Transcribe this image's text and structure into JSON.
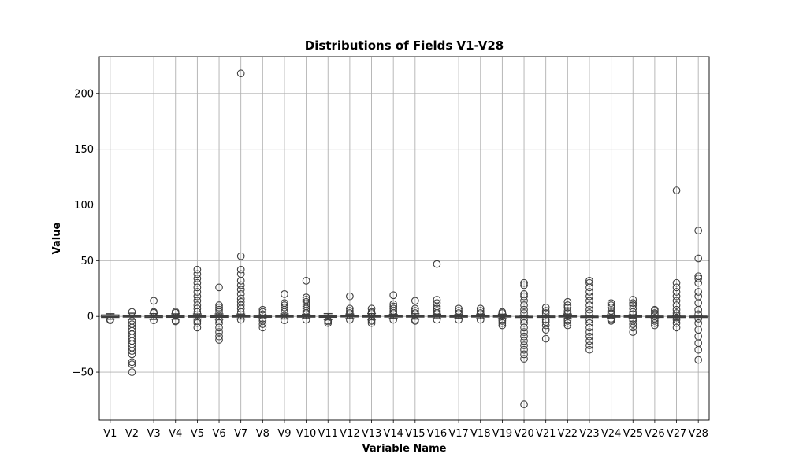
{
  "chart_data": {
    "type": "box",
    "title": "Distributions of Fields V1-V28",
    "xlabel": "Variable Name",
    "ylabel": "Value",
    "ylim": [
      -93,
      233
    ],
    "yticks": [
      -50,
      0,
      50,
      100,
      150,
      200
    ],
    "grid": true,
    "colors": {
      "box_stroke": "#3f3f3f",
      "outlier_stroke": "#3f3f3f",
      "grid": "#b0b0b0"
    },
    "categories": [
      "V1",
      "V2",
      "V3",
      "V4",
      "V5",
      "V6",
      "V7",
      "V8",
      "V9",
      "V10",
      "V11",
      "V12",
      "V13",
      "V14",
      "V15",
      "V16",
      "V17",
      "V18",
      "V19",
      "V20",
      "V21",
      "V22",
      "V23",
      "V24",
      "V25",
      "V26",
      "V27",
      "V28"
    ],
    "series": [
      {
        "category": "V1",
        "q1": -0.9,
        "median": 0.0,
        "q3": 1.3,
        "whisker_low": -2.5,
        "whisker_high": 2.4,
        "outliers": [
          -3.5,
          -3.0,
          -2.8
        ]
      },
      {
        "category": "V2",
        "q1": -0.6,
        "median": 0.1,
        "q3": 0.8,
        "whisker_low": -2.7,
        "whisker_high": 2.9,
        "outliers": [
          -50,
          -43,
          -41,
          -34,
          -31,
          -28,
          -25,
          -22,
          -19,
          -16,
          -13,
          -10,
          -7,
          -4,
          4
        ]
      },
      {
        "category": "V3",
        "q1": -0.9,
        "median": 0.2,
        "q3": 1.0,
        "whisker_low": -2.7,
        "whisker_high": 2.5,
        "outliers": [
          -3.5,
          3.2,
          4.0,
          14
        ]
      },
      {
        "category": "V4",
        "q1": -0.8,
        "median": 0.0,
        "q3": 0.7,
        "whisker_low": -2.5,
        "whisker_high": 2.3,
        "outliers": [
          -4.5,
          -3.8,
          3.2,
          4.2
        ]
      },
      {
        "category": "V5",
        "q1": -0.7,
        "median": 0.0,
        "q3": 0.6,
        "whisker_low": -2.3,
        "whisker_high": 2.2,
        "outliers": [
          -10,
          -6,
          -4,
          4,
          7,
          10,
          14,
          18,
          22,
          26,
          30,
          34,
          38,
          42
        ]
      },
      {
        "category": "V6",
        "q1": -0.8,
        "median": -0.3,
        "q3": 0.4,
        "whisker_low": -2.5,
        "whisker_high": 2.2,
        "outliers": [
          -21,
          -18,
          -14,
          -10,
          -6,
          -3,
          4,
          6,
          8,
          10,
          26
        ]
      },
      {
        "category": "V7",
        "q1": -0.6,
        "median": 0.0,
        "q3": 0.6,
        "whisker_low": -2.3,
        "whisker_high": 2.1,
        "outliers": [
          -3,
          4,
          7,
          10,
          13,
          16,
          20,
          24,
          28,
          32,
          38,
          42,
          54,
          218
        ]
      },
      {
        "category": "V8",
        "q1": -0.2,
        "median": 0.0,
        "q3": 0.3,
        "whisker_low": -1.0,
        "whisker_high": 1.1,
        "outliers": [
          -10,
          -7,
          -4,
          -2,
          2,
          4,
          6
        ]
      },
      {
        "category": "V9",
        "q1": -0.6,
        "median": 0.0,
        "q3": 0.6,
        "whisker_low": -2.3,
        "whisker_high": 2.2,
        "outliers": [
          -3.5,
          4,
          6,
          8,
          10,
          12,
          20
        ]
      },
      {
        "category": "V10",
        "q1": -0.5,
        "median": -0.1,
        "q3": 0.4,
        "whisker_low": -1.9,
        "whisker_high": 1.8,
        "outliers": [
          -3,
          3,
          5,
          7,
          9,
          11,
          13,
          15,
          17,
          32
        ]
      },
      {
        "category": "V11",
        "q1": -0.8,
        "median": 0.0,
        "q3": 0.7,
        "whisker_low": -2.8,
        "whisker_high": 2.5,
        "outliers": [
          -6,
          -4.5,
          -3.5
        ]
      },
      {
        "category": "V12",
        "q1": -0.4,
        "median": 0.1,
        "q3": 0.6,
        "whisker_low": -1.9,
        "whisker_high": 2.1,
        "outliers": [
          -3,
          3,
          5,
          7,
          18
        ]
      },
      {
        "category": "V13",
        "q1": -0.6,
        "median": 0.0,
        "q3": 0.7,
        "whisker_low": -2.6,
        "whisker_high": 2.5,
        "outliers": [
          -6,
          -4,
          -3,
          3,
          4,
          7
        ]
      },
      {
        "category": "V14",
        "q1": -0.4,
        "median": 0.0,
        "q3": 0.5,
        "whisker_low": -1.8,
        "whisker_high": 1.8,
        "outliers": [
          -3,
          3,
          5,
          7,
          9,
          11,
          19
        ]
      },
      {
        "category": "V15",
        "q1": -0.6,
        "median": 0.0,
        "q3": 0.6,
        "whisker_low": -2.4,
        "whisker_high": 2.4,
        "outliers": [
          -4,
          -3,
          3,
          5,
          7,
          14
        ]
      },
      {
        "category": "V16",
        "q1": -0.5,
        "median": 0.1,
        "q3": 0.5,
        "whisker_low": -2.0,
        "whisker_high": 2.0,
        "outliers": [
          -3,
          3,
          5,
          7,
          9,
          12,
          15,
          47
        ]
      },
      {
        "category": "V17",
        "q1": -0.5,
        "median": 0.0,
        "q3": 0.4,
        "whisker_low": -1.8,
        "whisker_high": 1.7,
        "outliers": [
          -3,
          3,
          5,
          7
        ]
      },
      {
        "category": "V18",
        "q1": -0.5,
        "median": 0.0,
        "q3": 0.5,
        "whisker_low": -2.0,
        "whisker_high": 2.0,
        "outliers": [
          -3,
          3,
          5,
          7
        ]
      },
      {
        "category": "V19",
        "q1": -0.5,
        "median": 0.0,
        "q3": 0.5,
        "whisker_low": -2.0,
        "whisker_high": 2.0,
        "outliers": [
          -8,
          -6,
          -4,
          -3,
          3,
          4
        ]
      },
      {
        "category": "V20",
        "q1": -0.2,
        "median": -0.1,
        "q3": 0.1,
        "whisker_low": -0.6,
        "whisker_high": 0.6,
        "outliers": [
          -79,
          -38,
          -34,
          -30,
          -26,
          -22,
          -18,
          -14,
          -10,
          -6,
          -3,
          3,
          6,
          10,
          14,
          18,
          20,
          28,
          30
        ]
      },
      {
        "category": "V21",
        "q1": -0.2,
        "median": 0.0,
        "q3": 0.2,
        "whisker_low": -0.8,
        "whisker_high": 0.8,
        "outliers": [
          -20,
          -12,
          -8,
          -5,
          -3,
          3,
          5,
          8
        ]
      },
      {
        "category": "V22",
        "q1": -0.5,
        "median": 0.0,
        "q3": 0.5,
        "whisker_low": -2.1,
        "whisker_high": 2.1,
        "outliers": [
          -8,
          -6,
          -4,
          -3,
          3,
          5,
          8,
          10,
          13
        ]
      },
      {
        "category": "V23",
        "q1": -0.2,
        "median": 0.0,
        "q3": 0.1,
        "whisker_low": -0.6,
        "whisker_high": 0.6,
        "outliers": [
          -30,
          -26,
          -22,
          -18,
          -14,
          -10,
          -6,
          -3,
          3,
          6,
          10,
          14,
          18,
          22,
          26,
          30,
          32
        ]
      },
      {
        "category": "V24",
        "q1": -0.4,
        "median": 0.0,
        "q3": 0.4,
        "whisker_low": -1.4,
        "whisker_high": 1.4,
        "outliers": [
          -4,
          -3,
          -2,
          2,
          3,
          5,
          8,
          10,
          12
        ]
      },
      {
        "category": "V25",
        "q1": -0.3,
        "median": 0.0,
        "q3": 0.4,
        "whisker_low": -1.4,
        "whisker_high": 1.4,
        "outliers": [
          -14,
          -10,
          -7,
          -4,
          -2,
          2,
          4,
          7,
          10,
          12,
          15
        ]
      },
      {
        "category": "V26",
        "q1": -0.3,
        "median": 0.0,
        "q3": 0.2,
        "whisker_low": -1.1,
        "whisker_high": 1.0,
        "outliers": [
          -8,
          -6,
          -4,
          -2,
          2,
          3,
          5,
          6
        ]
      },
      {
        "category": "V27",
        "q1": -0.1,
        "median": 0.0,
        "q3": 0.1,
        "whisker_low": -0.3,
        "whisker_high": 0.3,
        "outliers": [
          -10,
          -6,
          -3,
          -1,
          1,
          3,
          6,
          10,
          14,
          18,
          22,
          26,
          30,
          113
        ]
      },
      {
        "category": "V28",
        "q1": -0.05,
        "median": 0.0,
        "q3": 0.1,
        "whisker_low": -0.2,
        "whisker_high": 0.3,
        "outliers": [
          -39,
          -30,
          -24,
          -18,
          -12,
          -6,
          -2,
          2,
          6,
          12,
          18,
          22,
          30,
          34,
          36,
          52,
          77
        ]
      }
    ]
  }
}
